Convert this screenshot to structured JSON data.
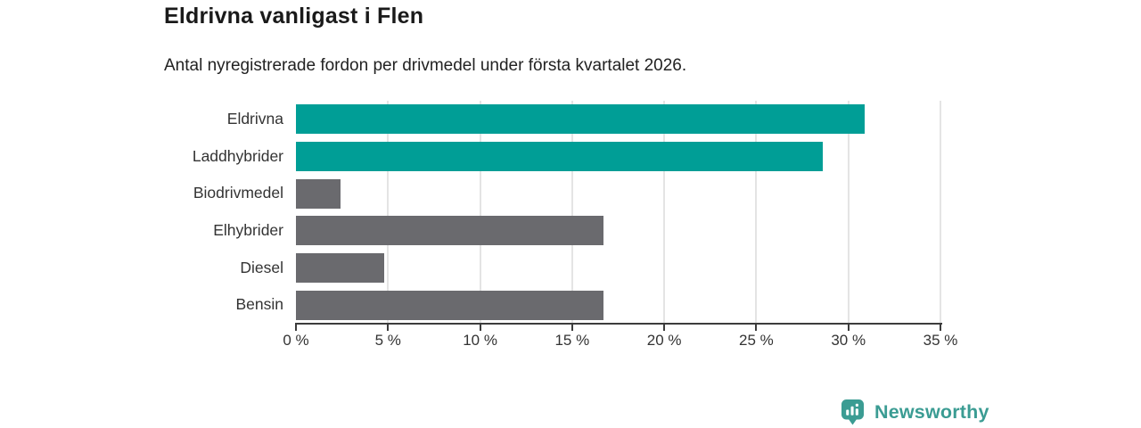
{
  "header": {
    "title": "Eldrivna vanligast i Flen",
    "subtitle": "Antal nyregistrerade fordon per drivmedel under första kvartalet 2026."
  },
  "chart_data": {
    "type": "bar",
    "orientation": "horizontal",
    "title": "Eldrivna vanligast i Flen",
    "subtitle": "Antal nyregistrerade fordon per drivmedel under första kvartalet 2026.",
    "categories": [
      "Eldrivna",
      "Laddhybrider",
      "Biodrivmedel",
      "Elhybrider",
      "Diesel",
      "Bensin"
    ],
    "values": [
      30.9,
      28.6,
      2.4,
      16.7,
      4.8,
      16.7
    ],
    "unit": "%",
    "xlabel": "",
    "ylabel": "",
    "xlim": [
      0,
      35
    ],
    "ticks": [
      0,
      5,
      10,
      15,
      20,
      25,
      30,
      35
    ],
    "tick_labels": [
      "0 %",
      "5 %",
      "10 %",
      "15 %",
      "20 %",
      "25 %",
      "30 %",
      "35 %"
    ],
    "bar_colors": [
      "#009E96",
      "#009E96",
      "#6A6A6E",
      "#6A6A6E",
      "#6A6A6E",
      "#6A6A6E"
    ],
    "grid": "vertical",
    "legend": "none"
  },
  "colors": {
    "accent_teal": "#009E96",
    "bar_gray": "#6A6A6E",
    "gridline": "#E4E4E4",
    "axis": "#3C3C3C",
    "title_text": "#1A1A1A",
    "body_text": "#333333",
    "logo_teal": "#3B9C93"
  },
  "footer": {
    "brand": "Newsworthy",
    "logo_icon": "bar-chart-pin-icon"
  }
}
